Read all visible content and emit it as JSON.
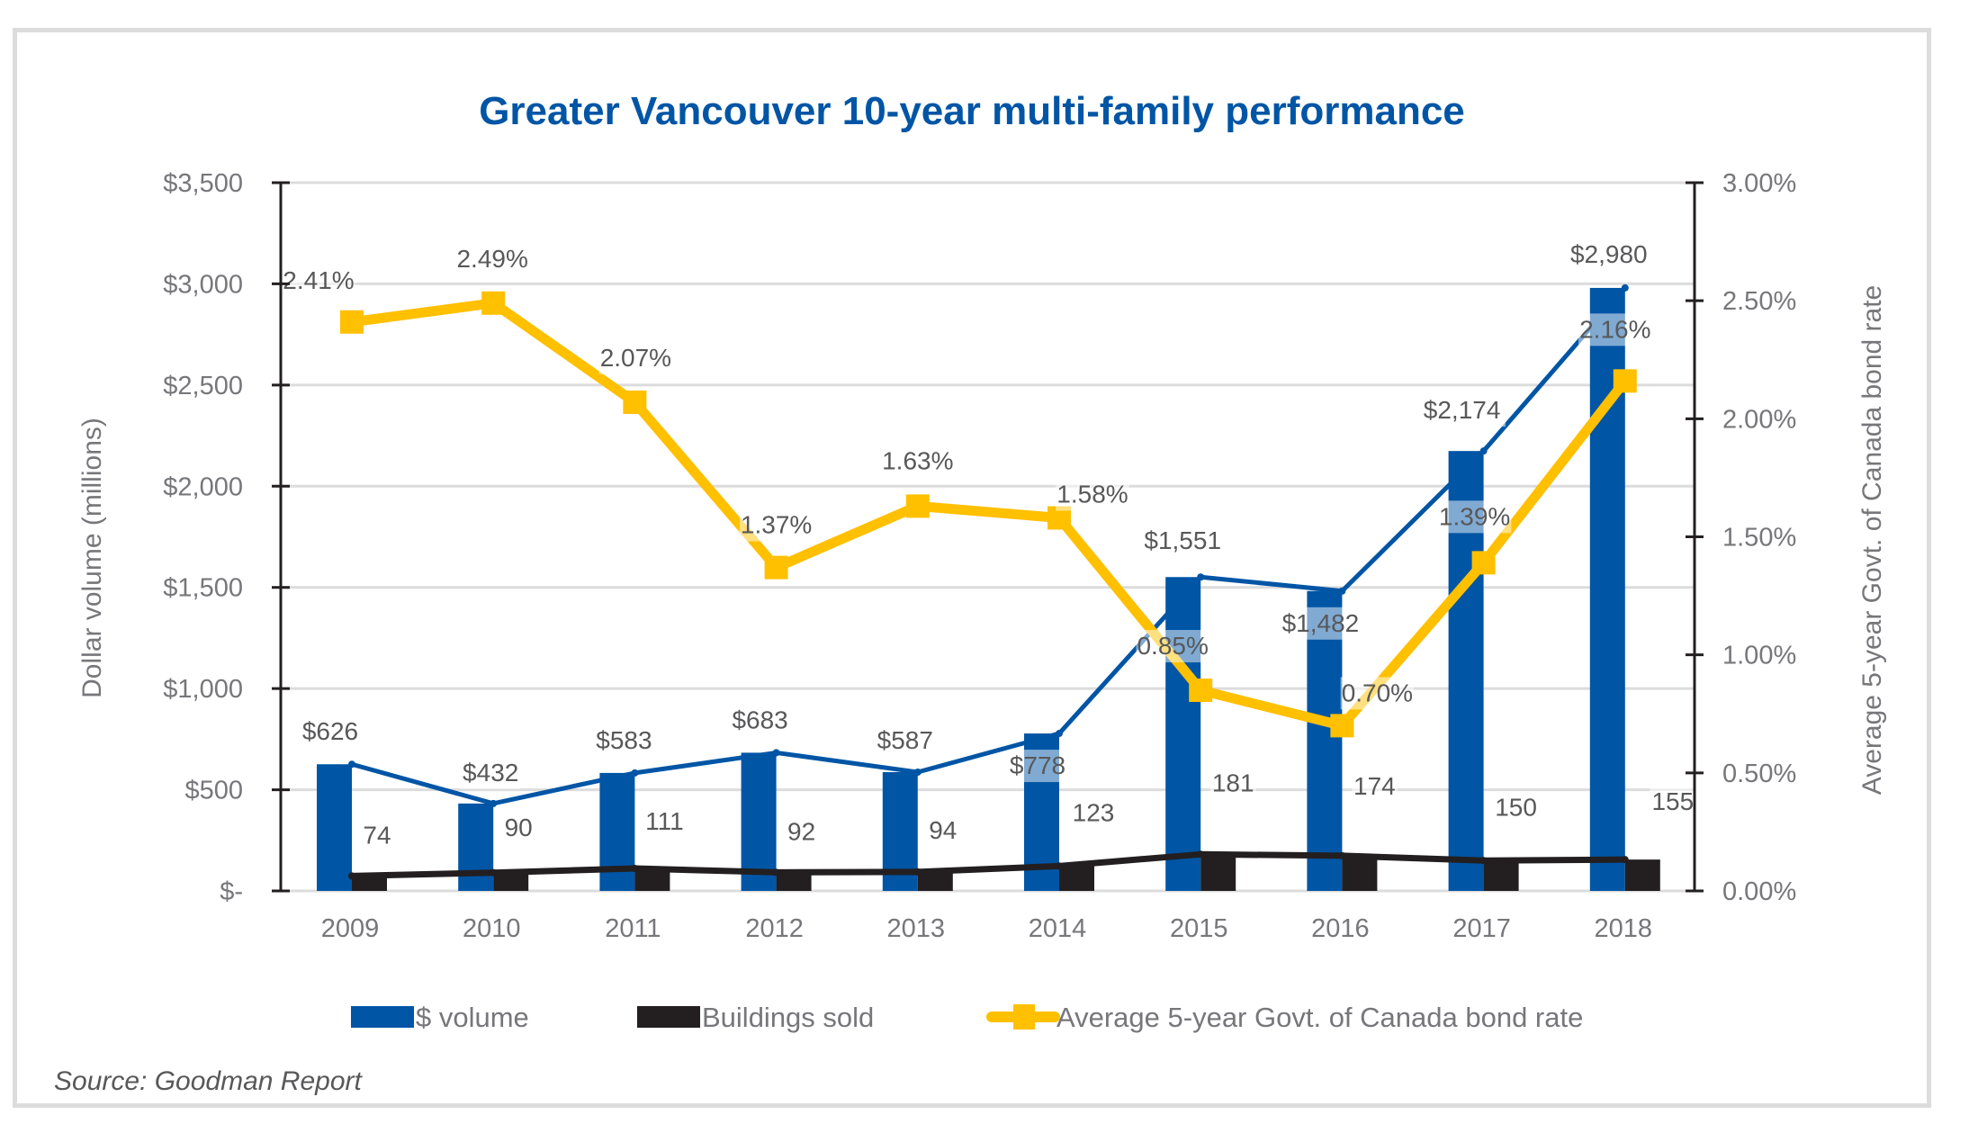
{
  "chart_data": {
    "type": "bar",
    "title": "Greater Vancouver 10-year multi-family performance",
    "categories": [
      "2009",
      "2010",
      "2011",
      "2012",
      "2013",
      "2014",
      "2015",
      "2016",
      "2017",
      "2018"
    ],
    "series": [
      {
        "name": "$ volume",
        "kind": "bar+line",
        "axis": "left",
        "color": "#0055a5",
        "values": [
          626,
          432,
          583,
          683,
          587,
          778,
          1551,
          1482,
          2174,
          2980
        ],
        "labels": [
          "$626",
          "$432",
          "$583",
          "$683",
          "$587",
          "$778",
          "$1,551",
          "$1,482",
          "$2,174",
          "$2,980"
        ]
      },
      {
        "name": "Buildings sold",
        "kind": "bar+line",
        "axis": "left",
        "color": "#231f20",
        "values": [
          74,
          90,
          111,
          92,
          94,
          123,
          181,
          174,
          150,
          155
        ],
        "labels": [
          "74",
          "90",
          "111",
          "92",
          "94",
          "123",
          "181",
          "174",
          "150",
          "155"
        ]
      },
      {
        "name": "Average 5-year Govt. of Canada bond rate",
        "kind": "line",
        "axis": "right",
        "color": "#ffc000",
        "values": [
          2.41,
          2.49,
          2.07,
          1.37,
          1.63,
          1.58,
          0.85,
          0.7,
          1.39,
          2.16
        ],
        "labels": [
          "2.41%",
          "2.49%",
          "2.07%",
          "1.37%",
          "1.63%",
          "1.58%",
          "0.85%",
          "0.70%",
          "1.39%",
          "2.16%"
        ]
      }
    ],
    "ylabel": "Dollar volume (millions)",
    "ylabel_right": "Average 5-year Govt. of Canada bond rate",
    "ylim": [
      0,
      3500
    ],
    "ylim_right": [
      0,
      3.0
    ],
    "yticks": [
      "$-",
      "$500",
      "$1,000",
      "$1,500",
      "$2,000",
      "$2,500",
      "$3,000",
      "$3,500"
    ],
    "yticks_right": [
      "0.00%",
      "0.50%",
      "1.00%",
      "1.50%",
      "2.00%",
      "2.50%",
      "3.00%"
    ],
    "grid": true,
    "legend": "bottom",
    "legend_entries": [
      "$ volume",
      "Buildings sold",
      "Average 5-year Govt. of Canada bond rate"
    ],
    "source": "Source: Goodman Report"
  },
  "colors": {
    "title": "#0055a5",
    "volume": "#0055a5",
    "buildings": "#231f20",
    "bond": "#ffc000",
    "grid": "#dcdcdc",
    "tick_text": "#77767a"
  }
}
